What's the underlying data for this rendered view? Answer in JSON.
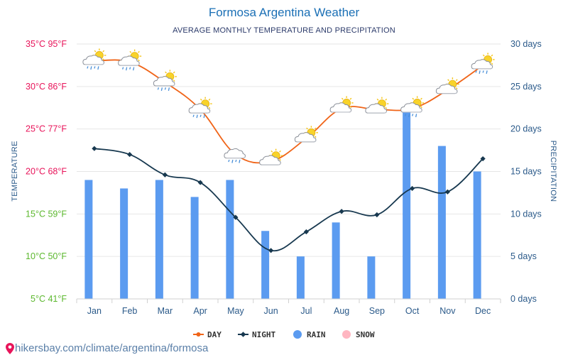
{
  "title": "Formosa Argentina Weather",
  "subtitle": "AVERAGE MONTHLY TEMPERATURE AND PRECIPITATION",
  "footer_url": "hikersbay.com/climate/argentina/formosa",
  "colors": {
    "day": "#f06418",
    "night": "#17384f",
    "rain": "#5b9bf0",
    "snow": "#ffb6c1",
    "grid": "#e6e6e6",
    "title": "#1a6fb5"
  },
  "legend": [
    {
      "key": "day",
      "label": "DAY",
      "symbol": "line-dot"
    },
    {
      "key": "night",
      "label": "NIGHT",
      "symbol": "line-diamond"
    },
    {
      "key": "rain",
      "label": "RAIN",
      "symbol": "circle"
    },
    {
      "key": "snow",
      "label": "SNOW",
      "symbol": "circle"
    }
  ],
  "chart_data": {
    "type": "line",
    "categories": [
      "Jan",
      "Feb",
      "Mar",
      "Apr",
      "May",
      "Jun",
      "Jul",
      "Aug",
      "Sep",
      "Oct",
      "Nov",
      "Dec"
    ],
    "ylabel_left": "TEMPERATURE",
    "ylabel_right": "PRECIPITATION",
    "ylim_left": [
      5,
      35
    ],
    "ylim_right": [
      0,
      30
    ],
    "yticks_left": [
      {
        "value": 35,
        "label": "35°C 95°F",
        "color": "#e8145a"
      },
      {
        "value": 30,
        "label": "30°C 86°F",
        "color": "#e8145a"
      },
      {
        "value": 25,
        "label": "25°C 77°F",
        "color": "#e8145a"
      },
      {
        "value": 20,
        "label": "20°C 68°F",
        "color": "#e8145a"
      },
      {
        "value": 15,
        "label": "15°C 59°F",
        "color": "#5cb82e"
      },
      {
        "value": 10,
        "label": "10°C 50°F",
        "color": "#5cb82e"
      },
      {
        "value": 5,
        "label": "5°C 41°F",
        "color": "#5cb82e"
      }
    ],
    "yticks_right": [
      {
        "value": 30,
        "label": "30 days"
      },
      {
        "value": 25,
        "label": "25 days"
      },
      {
        "value": 20,
        "label": "20 days"
      },
      {
        "value": 15,
        "label": "15 days"
      },
      {
        "value": 10,
        "label": "10 days"
      },
      {
        "value": 5,
        "label": "5 days"
      },
      {
        "value": 0,
        "label": "0 days"
      }
    ],
    "series": [
      {
        "name": "DAY",
        "axis": "left",
        "values": [
          33.0,
          32.9,
          30.5,
          27.3,
          22.0,
          21.2,
          23.9,
          27.4,
          27.3,
          27.4,
          29.6,
          32.5
        ]
      },
      {
        "name": "NIGHT",
        "axis": "left",
        "values": [
          22.7,
          22.0,
          19.6,
          18.7,
          14.6,
          10.7,
          12.9,
          15.3,
          14.9,
          18.0,
          17.6,
          21.5
        ]
      },
      {
        "name": "RAIN",
        "axis": "right",
        "type": "bar",
        "values": [
          14,
          13,
          14,
          12,
          14,
          8,
          5,
          9,
          5,
          22,
          18,
          15
        ]
      },
      {
        "name": "SNOW",
        "axis": "right",
        "type": "bar",
        "values": [
          0,
          0,
          0,
          0,
          0,
          0,
          0,
          0,
          0,
          0,
          0,
          0
        ]
      }
    ],
    "weather_icons": [
      "sun-cloud-rain",
      "sun-cloud-rain",
      "sun-cloud-rain",
      "sun-cloud-rain",
      "cloud-rain",
      "sun-cloud",
      "sun-cloud",
      "sun-cloud",
      "sun-cloud",
      "sun-cloud-rain",
      "sun-cloud",
      "sun-cloud-rain"
    ],
    "grid": true,
    "legend_position": "bottom-center"
  }
}
